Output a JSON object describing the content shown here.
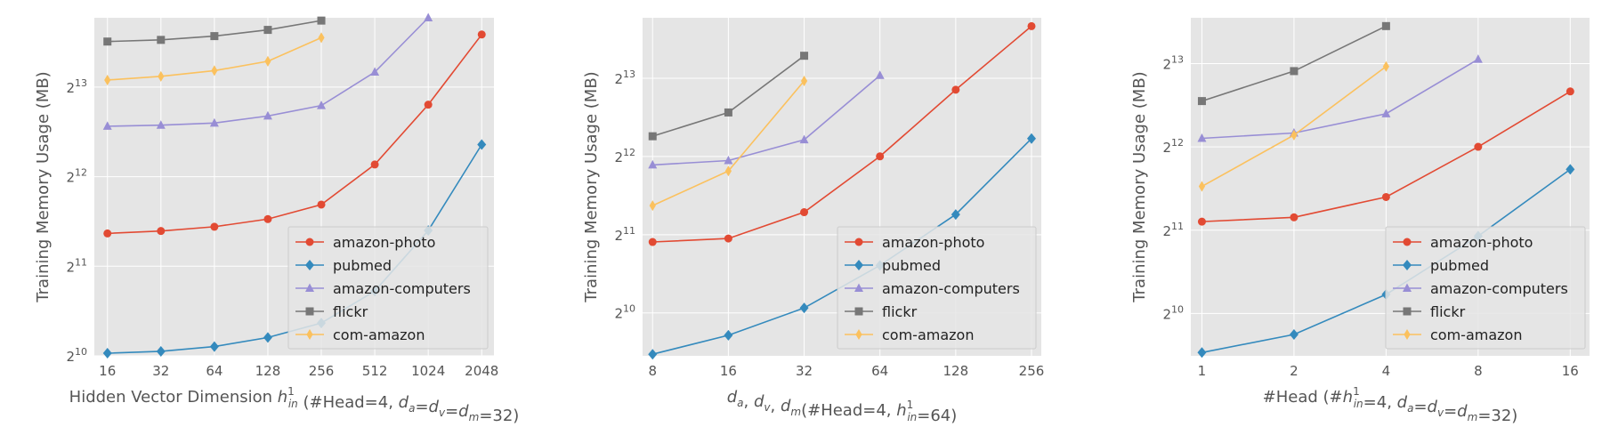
{
  "figure": {
    "name": "memory-usage-figure"
  },
  "chart_data": [
    {
      "type": "line",
      "xlabel_parts": [
        "Hidden Vector Dimension ",
        "h",
        "in",
        "1",
        " (#Head=4, ",
        "d",
        "a",
        "=",
        "d",
        "v",
        "=",
        "d",
        "m",
        "=32)"
      ],
      "xlabel_text": "Hidden Vector Dimension h_in^1 (#Head=4, d_a=d_v=d_m=32)",
      "ylabel": "Training Memory Usage (MB)",
      "x_scale": "log2",
      "y_scale": "log2",
      "x_ticks": [
        16,
        32,
        64,
        128,
        256,
        512,
        1024,
        2048
      ],
      "x_tick_labels": [
        "16",
        "32",
        "64",
        "128",
        "256",
        "512",
        "1024",
        "2048"
      ],
      "xlim": [
        13.5,
        2400
      ],
      "y_ticks": [
        1024,
        2048,
        4096,
        8192
      ],
      "y_tick_labels": [
        {
          "base": "2",
          "exp": "10"
        },
        {
          "base": "2",
          "exp": "11"
        },
        {
          "base": "2",
          "exp": "12"
        },
        {
          "base": "2",
          "exp": "13"
        }
      ],
      "ylim": [
        1024,
        14000
      ],
      "grid": true,
      "legend_position": "lower-right",
      "series": [
        {
          "name": "amazon-photo",
          "color": "#E24A33",
          "marker": "circle",
          "x": [
            16,
            32,
            64,
            128,
            256,
            512,
            1024,
            2048
          ],
          "y": [
            2640,
            2690,
            2780,
            2950,
            3300,
            4500,
            7150,
            12300
          ]
        },
        {
          "name": "pubmed",
          "color": "#348ABD",
          "marker": "diamond",
          "x": [
            16,
            32,
            64,
            128,
            256,
            512,
            1024,
            2048
          ],
          "y": [
            1045,
            1060,
            1100,
            1180,
            1320,
            1690,
            2700,
            5250
          ]
        },
        {
          "name": "amazon-computers",
          "color": "#988ED5",
          "marker": "triangle",
          "x": [
            16,
            32,
            64,
            128,
            256,
            512,
            1024
          ],
          "y": [
            6050,
            6100,
            6200,
            6550,
            7100,
            9200,
            14000
          ]
        },
        {
          "name": "flickr",
          "color": "#777777",
          "marker": "square",
          "x": [
            16,
            32,
            64,
            128,
            256
          ],
          "y": [
            11650,
            11800,
            12150,
            12750,
            13700
          ]
        },
        {
          "name": "com-amazon",
          "color": "#FBC15E",
          "marker": "thin-diamond",
          "x": [
            16,
            32,
            64,
            128,
            256
          ],
          "y": [
            8650,
            8900,
            9300,
            10000,
            12000
          ]
        }
      ]
    },
    {
      "type": "line",
      "xlabel_parts": [
        "d",
        "a",
        ", ",
        "d",
        "v",
        ", ",
        "d",
        "m",
        "(#Head=4, ",
        "h",
        "in",
        "1",
        "=64)"
      ],
      "xlabel_text": "d_a, d_v, d_m(#Head=4, h_in^1=64)",
      "ylabel": "Training Memory Usage (MB)",
      "x_scale": "log2",
      "y_scale": "log2",
      "x_ticks": [
        8,
        16,
        32,
        64,
        128,
        256
      ],
      "x_tick_labels": [
        "8",
        "16",
        "32",
        "64",
        "128",
        "256"
      ],
      "xlim": [
        7.3,
        280
      ],
      "y_ticks": [
        1024,
        2048,
        4096,
        8192
      ],
      "y_tick_labels": [
        {
          "base": "2",
          "exp": "10"
        },
        {
          "base": "2",
          "exp": "11"
        },
        {
          "base": "2",
          "exp": "12"
        },
        {
          "base": "2",
          "exp": "13"
        }
      ],
      "ylim": [
        700,
        14000
      ],
      "grid": true,
      "legend_position": "lower-right",
      "series": [
        {
          "name": "amazon-photo",
          "color": "#E24A33",
          "marker": "circle",
          "x": [
            8,
            16,
            32,
            64,
            128,
            256
          ],
          "y": [
            1920,
            1980,
            2500,
            4100,
            7400,
            13000
          ]
        },
        {
          "name": "pubmed",
          "color": "#348ABD",
          "marker": "diamond",
          "x": [
            8,
            16,
            32,
            64,
            128,
            256
          ],
          "y": [
            710,
            840,
            1070,
            1560,
            2450,
            4800
          ]
        },
        {
          "name": "amazon-computers",
          "color": "#988ED5",
          "marker": "triangle",
          "x": [
            8,
            16,
            32,
            64
          ],
          "y": [
            3800,
            3950,
            4750,
            8400
          ]
        },
        {
          "name": "flickr",
          "color": "#777777",
          "marker": "square",
          "x": [
            8,
            16,
            32
          ],
          "y": [
            4900,
            6050,
            10000
          ]
        },
        {
          "name": "com-amazon",
          "color": "#FBC15E",
          "marker": "thin-diamond",
          "x": [
            8,
            16,
            32
          ],
          "y": [
            2650,
            3600,
            8000
          ]
        }
      ]
    },
    {
      "type": "line",
      "xlabel_parts": [
        "#Head (#",
        "h",
        "in",
        "1",
        "=4, ",
        "d",
        "a",
        "=",
        "d",
        "v",
        "=",
        "d",
        "m",
        "=32)"
      ],
      "xlabel_text": "#Head (#h_in^1=4, d_a=d_v=d_m=32)",
      "ylabel": "Training Memory Usage (MB)",
      "x_scale": "log2",
      "y_scale": "log2",
      "x_ticks": [
        1,
        2,
        4,
        8,
        16
      ],
      "x_tick_labels": [
        "1",
        "2",
        "4",
        "8",
        "16"
      ],
      "xlim": [
        0.92,
        18.5
      ],
      "y_ticks": [
        1024,
        2048,
        4096,
        8192
      ],
      "y_tick_labels": [
        {
          "base": "2",
          "exp": "10"
        },
        {
          "base": "2",
          "exp": "11"
        },
        {
          "base": "2",
          "exp": "12"
        },
        {
          "base": "2",
          "exp": "13"
        }
      ],
      "ylim": [
        720,
        12000
      ],
      "grid": true,
      "legend_position": "lower-right",
      "series": [
        {
          "name": "amazon-photo",
          "color": "#E24A33",
          "marker": "circle",
          "x": [
            1,
            2,
            4,
            8,
            16
          ],
          "y": [
            2200,
            2280,
            2700,
            4100,
            6500
          ]
        },
        {
          "name": "pubmed",
          "color": "#348ABD",
          "marker": "diamond",
          "x": [
            1,
            2,
            4,
            8,
            16
          ],
          "y": [
            740,
            860,
            1200,
            1950,
            3400
          ]
        },
        {
          "name": "amazon-computers",
          "color": "#988ED5",
          "marker": "triangle",
          "x": [
            1,
            2,
            4,
            8
          ],
          "y": [
            4400,
            4600,
            5400,
            8500
          ]
        },
        {
          "name": "flickr",
          "color": "#777777",
          "marker": "square",
          "x": [
            1,
            2,
            4
          ],
          "y": [
            6000,
            7700,
            11200
          ]
        },
        {
          "name": "com-amazon",
          "color": "#FBC15E",
          "marker": "thin-diamond",
          "x": [
            1,
            2,
            4
          ],
          "y": [
            2950,
            4520,
            8000
          ]
        }
      ]
    }
  ]
}
